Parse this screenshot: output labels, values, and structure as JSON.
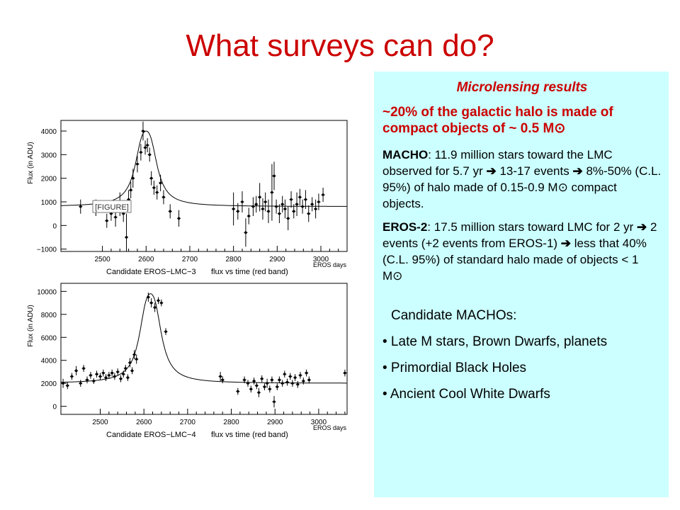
{
  "slide_title": "What surveys can do?",
  "panel": {
    "heading": "Microlensing results",
    "lead": " ~20% of the galactic halo is made of compact objects of ~ 0.5 M⊙",
    "macho": {
      "label": "MACHO",
      "t1": ":  11.9 million stars toward the LMC observed for 5.7 yr ",
      "arrow1": "➔",
      "t2": " 13-17 events ",
      "arrow2": "➔",
      "t3": " 8%-50% (C.L. 95%) of halo made of 0.15-0.9 M⊙ compact objects."
    },
    "eros": {
      "label": "EROS-2",
      "t1": ":  17.5 million stars toward LMC for 2 yr ",
      "arrow1": "➔",
      "t2": " 2 events (+2 events from EROS-1) ",
      "arrow2": "➔",
      "t3": " less that 40% (C.L. 95%) of standard halo made of objects < 1 M⊙"
    },
    "candidates_title": "Candidate MACHOs:",
    "candidates": [
      "• Late M stars, Brown Dwarfs, planets",
      "• Primordial Black Holes",
      "• Ancient Cool White Dwarfs"
    ]
  },
  "chart_data": [
    {
      "type": "scatter",
      "title": "Candidate EROS−LMC−3",
      "subtitle": "flux vs time (red band)",
      "xlabel": "EROS days",
      "ylabel": "Flux (in ADU)",
      "xlim": [
        2405,
        3060
      ],
      "ylim": [
        -1100,
        4450
      ],
      "xticks": [
        "2500",
        "2600",
        "2700",
        "2800",
        "2900",
        "3000"
      ],
      "yticks": [
        "−1000",
        "0",
        "1000",
        "2000",
        "3000",
        "4000"
      ],
      "baseline": 800,
      "peak_x": 2600,
      "peak_y": 4000,
      "inset_label": "[FIGURE]",
      "points": [
        {
          "x": 2450,
          "y": 800,
          "e": 300
        },
        {
          "x": 2485,
          "y": 750,
          "e": 350
        },
        {
          "x": 2510,
          "y": 200,
          "e": 300
        },
        {
          "x": 2520,
          "y": 500,
          "e": 300
        },
        {
          "x": 2530,
          "y": 350,
          "e": 400
        },
        {
          "x": 2540,
          "y": 900,
          "e": 500
        },
        {
          "x": 2548,
          "y": 500,
          "e": 350
        },
        {
          "x": 2555,
          "y": -500,
          "e": 1000
        },
        {
          "x": 2560,
          "y": 1100,
          "e": 400
        },
        {
          "x": 2565,
          "y": 1500,
          "e": 350
        },
        {
          "x": 2570,
          "y": 2000,
          "e": 400
        },
        {
          "x": 2580,
          "y": 2600,
          "e": 350
        },
        {
          "x": 2588,
          "y": 3100,
          "e": 350
        },
        {
          "x": 2593,
          "y": 4000,
          "e": 400
        },
        {
          "x": 2598,
          "y": 3300,
          "e": 300
        },
        {
          "x": 2603,
          "y": 3400,
          "e": 300
        },
        {
          "x": 2608,
          "y": 3000,
          "e": 300
        },
        {
          "x": 2612,
          "y": 2000,
          "e": 300
        },
        {
          "x": 2618,
          "y": 1600,
          "e": 300
        },
        {
          "x": 2625,
          "y": 1400,
          "e": 300
        },
        {
          "x": 2633,
          "y": 1800,
          "e": 350
        },
        {
          "x": 2640,
          "y": 1200,
          "e": 300
        },
        {
          "x": 2655,
          "y": 600,
          "e": 300
        },
        {
          "x": 2675,
          "y": 300,
          "e": 350
        },
        {
          "x": 2800,
          "y": 700,
          "e": 700
        },
        {
          "x": 2810,
          "y": 600,
          "e": 350
        },
        {
          "x": 2820,
          "y": 1000,
          "e": 450
        },
        {
          "x": 2828,
          "y": -300,
          "e": 600
        },
        {
          "x": 2835,
          "y": 400,
          "e": 350
        },
        {
          "x": 2845,
          "y": 800,
          "e": 400
        },
        {
          "x": 2852,
          "y": 900,
          "e": 350
        },
        {
          "x": 2860,
          "y": 1200,
          "e": 600
        },
        {
          "x": 2867,
          "y": 700,
          "e": 450
        },
        {
          "x": 2873,
          "y": 1000,
          "e": 400
        },
        {
          "x": 2880,
          "y": 600,
          "e": 500
        },
        {
          "x": 2888,
          "y": 1400,
          "e": 1200
        },
        {
          "x": 2893,
          "y": 2100,
          "e": 600
        },
        {
          "x": 2898,
          "y": 800,
          "e": 300
        },
        {
          "x": 2905,
          "y": 500,
          "e": 400
        },
        {
          "x": 2912,
          "y": 900,
          "e": 350
        },
        {
          "x": 2918,
          "y": 700,
          "e": 400
        },
        {
          "x": 2925,
          "y": 300,
          "e": 500
        },
        {
          "x": 2932,
          "y": 1100,
          "e": 350
        },
        {
          "x": 2938,
          "y": 600,
          "e": 300
        },
        {
          "x": 2945,
          "y": 900,
          "e": 500
        },
        {
          "x": 2952,
          "y": 1200,
          "e": 350
        },
        {
          "x": 2958,
          "y": 800,
          "e": 300
        },
        {
          "x": 2965,
          "y": 1100,
          "e": 400
        },
        {
          "x": 2972,
          "y": 500,
          "e": 350
        },
        {
          "x": 2980,
          "y": 900,
          "e": 300
        },
        {
          "x": 2988,
          "y": 700,
          "e": 400
        },
        {
          "x": 2995,
          "y": 1000,
          "e": 350
        },
        {
          "x": 3005,
          "y": 1300,
          "e": 300
        }
      ]
    },
    {
      "type": "scatter",
      "title": "Candidate EROS−LMC−4",
      "subtitle": "flux vs time (red band)",
      "xlabel": "EROS days",
      "ylabel": "Flux (in ADU)",
      "xlim": [
        2410,
        3065
      ],
      "ylim": [
        -700,
        10700
      ],
      "xticks": [
        "2500",
        "2600",
        "2700",
        "2800",
        "2900",
        "3000"
      ],
      "yticks": [
        "0",
        "2000",
        "4000",
        "6000",
        "8000",
        "10000"
      ],
      "baseline": 2000,
      "peak_x": 2615,
      "peak_y": 9800,
      "points": [
        {
          "x": 2415,
          "y": 2000,
          "e": 400
        },
        {
          "x": 2425,
          "y": 1800,
          "e": 300
        },
        {
          "x": 2435,
          "y": 2600,
          "e": 300
        },
        {
          "x": 2445,
          "y": 3100,
          "e": 400
        },
        {
          "x": 2455,
          "y": 2000,
          "e": 300
        },
        {
          "x": 2462,
          "y": 3300,
          "e": 300
        },
        {
          "x": 2470,
          "y": 2300,
          "e": 300
        },
        {
          "x": 2478,
          "y": 2700,
          "e": 300
        },
        {
          "x": 2485,
          "y": 2200,
          "e": 250
        },
        {
          "x": 2492,
          "y": 2800,
          "e": 300
        },
        {
          "x": 2500,
          "y": 2600,
          "e": 300
        },
        {
          "x": 2507,
          "y": 2900,
          "e": 300
        },
        {
          "x": 2513,
          "y": 2500,
          "e": 300
        },
        {
          "x": 2520,
          "y": 2700,
          "e": 300
        },
        {
          "x": 2527,
          "y": 2900,
          "e": 300
        },
        {
          "x": 2533,
          "y": 2600,
          "e": 300
        },
        {
          "x": 2540,
          "y": 3000,
          "e": 300
        },
        {
          "x": 2547,
          "y": 2400,
          "e": 300
        },
        {
          "x": 2553,
          "y": 2800,
          "e": 300
        },
        {
          "x": 2558,
          "y": 3300,
          "e": 300
        },
        {
          "x": 2563,
          "y": 2500,
          "e": 300
        },
        {
          "x": 2568,
          "y": 3800,
          "e": 400
        },
        {
          "x": 2573,
          "y": 3100,
          "e": 300
        },
        {
          "x": 2578,
          "y": 4500,
          "e": 400
        },
        {
          "x": 2583,
          "y": 4100,
          "e": 400
        },
        {
          "x": 2610,
          "y": 9500,
          "e": 400
        },
        {
          "x": 2617,
          "y": 9000,
          "e": 400
        },
        {
          "x": 2625,
          "y": 8600,
          "e": 400
        },
        {
          "x": 2633,
          "y": 9200,
          "e": 300
        },
        {
          "x": 2640,
          "y": 9000,
          "e": 300
        },
        {
          "x": 2650,
          "y": 6500,
          "e": 300
        },
        {
          "x": 2775,
          "y": 2600,
          "e": 400
        },
        {
          "x": 2780,
          "y": 2300,
          "e": 300
        },
        {
          "x": 2815,
          "y": 1300,
          "e": 300
        },
        {
          "x": 2830,
          "y": 2300,
          "e": 300
        },
        {
          "x": 2838,
          "y": 2000,
          "e": 300
        },
        {
          "x": 2845,
          "y": 1500,
          "e": 300
        },
        {
          "x": 2852,
          "y": 2200,
          "e": 300
        },
        {
          "x": 2858,
          "y": 1800,
          "e": 300
        },
        {
          "x": 2863,
          "y": 1200,
          "e": 400
        },
        {
          "x": 2870,
          "y": 2400,
          "e": 300
        },
        {
          "x": 2876,
          "y": 1700,
          "e": 300
        },
        {
          "x": 2882,
          "y": 2000,
          "e": 400
        },
        {
          "x": 2888,
          "y": 1500,
          "e": 300
        },
        {
          "x": 2893,
          "y": 2300,
          "e": 300
        },
        {
          "x": 2898,
          "y": 400,
          "e": 500
        },
        {
          "x": 2905,
          "y": 1700,
          "e": 300
        },
        {
          "x": 2910,
          "y": 2300,
          "e": 300
        },
        {
          "x": 2917,
          "y": 2000,
          "e": 300
        },
        {
          "x": 2922,
          "y": 2800,
          "e": 300
        },
        {
          "x": 2928,
          "y": 2100,
          "e": 300
        },
        {
          "x": 2935,
          "y": 2600,
          "e": 300
        },
        {
          "x": 2940,
          "y": 2000,
          "e": 300
        },
        {
          "x": 2946,
          "y": 2500,
          "e": 300
        },
        {
          "x": 2952,
          "y": 1900,
          "e": 300
        },
        {
          "x": 2958,
          "y": 2700,
          "e": 300
        },
        {
          "x": 2965,
          "y": 2200,
          "e": 300
        },
        {
          "x": 2972,
          "y": 2900,
          "e": 300
        },
        {
          "x": 2978,
          "y": 2300,
          "e": 300
        },
        {
          "x": 3060,
          "y": 2900,
          "e": 300
        }
      ]
    }
  ]
}
